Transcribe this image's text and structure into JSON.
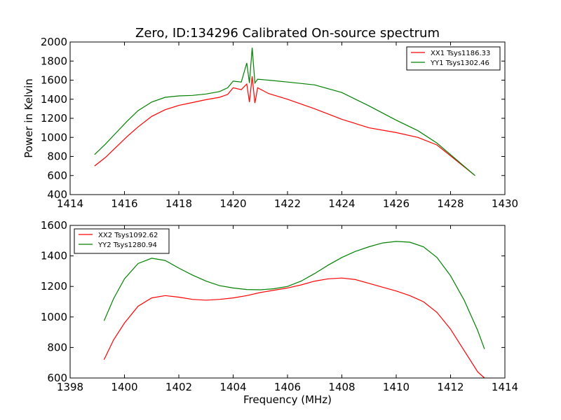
{
  "title": "Zero, ID:134296 Calibrated On-source spectrum",
  "ylabel": "Power in Kelvin",
  "xlabel": "Frequency (MHz)",
  "colors": {
    "series_a": "#ff0000",
    "series_b": "#008000"
  },
  "chart_data": [
    {
      "type": "line",
      "xlim": [
        1414,
        1430
      ],
      "ylim": [
        400,
        2000
      ],
      "xticks": [
        1414,
        1416,
        1418,
        1420,
        1422,
        1424,
        1426,
        1428,
        1430
      ],
      "yticks": [
        400,
        600,
        800,
        1000,
        1200,
        1400,
        1600,
        1800,
        2000
      ],
      "legend_position": "top-right",
      "series": [
        {
          "name": "XX1 Tsys1186.33",
          "color": "#ff0000",
          "points": [
            [
              1414.9,
              700
            ],
            [
              1415.3,
              790
            ],
            [
              1415.7,
              900
            ],
            [
              1416.1,
              1010
            ],
            [
              1416.5,
              1110
            ],
            [
              1417.0,
              1220
            ],
            [
              1417.5,
              1290
            ],
            [
              1418.0,
              1335
            ],
            [
              1418.5,
              1365
            ],
            [
              1419.0,
              1395
            ],
            [
              1419.5,
              1420
            ],
            [
              1419.8,
              1450
            ],
            [
              1420.0,
              1520
            ],
            [
              1420.3,
              1500
            ],
            [
              1420.5,
              1560
            ],
            [
              1420.6,
              1370
            ],
            [
              1420.7,
              1640
            ],
            [
              1420.8,
              1360
            ],
            [
              1420.9,
              1520
            ],
            [
              1421.3,
              1460
            ],
            [
              1422.0,
              1400
            ],
            [
              1423.0,
              1300
            ],
            [
              1424.0,
              1190
            ],
            [
              1425.0,
              1100
            ],
            [
              1426.0,
              1050
            ],
            [
              1426.8,
              1000
            ],
            [
              1427.5,
              920
            ],
            [
              1428.2,
              760
            ],
            [
              1428.9,
              600
            ]
          ]
        },
        {
          "name": "YY1 Tsys1302.46",
          "color": "#008000",
          "points": [
            [
              1414.9,
              820
            ],
            [
              1415.3,
              930
            ],
            [
              1415.7,
              1050
            ],
            [
              1416.1,
              1170
            ],
            [
              1416.5,
              1280
            ],
            [
              1417.0,
              1370
            ],
            [
              1417.5,
              1420
            ],
            [
              1418.0,
              1435
            ],
            [
              1418.5,
              1440
            ],
            [
              1419.0,
              1455
            ],
            [
              1419.5,
              1480
            ],
            [
              1419.8,
              1520
            ],
            [
              1420.0,
              1590
            ],
            [
              1420.3,
              1580
            ],
            [
              1420.5,
              1780
            ],
            [
              1420.6,
              1570
            ],
            [
              1420.7,
              1940
            ],
            [
              1420.8,
              1570
            ],
            [
              1420.9,
              1610
            ],
            [
              1421.3,
              1600
            ],
            [
              1422.0,
              1580
            ],
            [
              1423.0,
              1550
            ],
            [
              1424.0,
              1470
            ],
            [
              1425.0,
              1330
            ],
            [
              1426.0,
              1180
            ],
            [
              1426.8,
              1070
            ],
            [
              1427.5,
              940
            ],
            [
              1428.2,
              770
            ],
            [
              1428.9,
              600
            ]
          ]
        }
      ]
    },
    {
      "type": "line",
      "xlim": [
        1398,
        1414
      ],
      "ylim": [
        600,
        1600
      ],
      "xticks": [
        1398,
        1400,
        1402,
        1404,
        1406,
        1408,
        1410,
        1412,
        1414
      ],
      "yticks": [
        600,
        800,
        1000,
        1200,
        1400,
        1600
      ],
      "legend_position": "top-left",
      "series": [
        {
          "name": "XX2 Tsys1092.62",
          "color": "#ff0000",
          "points": [
            [
              1399.25,
              720
            ],
            [
              1399.6,
              850
            ],
            [
              1400.0,
              960
            ],
            [
              1400.5,
              1070
            ],
            [
              1401.0,
              1125
            ],
            [
              1401.5,
              1140
            ],
            [
              1402.0,
              1130
            ],
            [
              1402.5,
              1115
            ],
            [
              1403.0,
              1110
            ],
            [
              1403.5,
              1115
            ],
            [
              1404.0,
              1125
            ],
            [
              1404.5,
              1140
            ],
            [
              1405.0,
              1160
            ],
            [
              1405.5,
              1175
            ],
            [
              1406.0,
              1190
            ],
            [
              1406.5,
              1210
            ],
            [
              1407.0,
              1235
            ],
            [
              1407.5,
              1250
            ],
            [
              1408.0,
              1255
            ],
            [
              1408.5,
              1245
            ],
            [
              1409.0,
              1220
            ],
            [
              1409.5,
              1195
            ],
            [
              1410.0,
              1170
            ],
            [
              1410.5,
              1140
            ],
            [
              1411.0,
              1100
            ],
            [
              1411.5,
              1030
            ],
            [
              1412.0,
              920
            ],
            [
              1412.5,
              780
            ],
            [
              1413.0,
              640
            ],
            [
              1413.25,
              600
            ]
          ]
        },
        {
          "name": "YY2 Tsys1280.94",
          "color": "#008000",
          "points": [
            [
              1399.25,
              975
            ],
            [
              1399.6,
              1120
            ],
            [
              1400.0,
              1250
            ],
            [
              1400.5,
              1350
            ],
            [
              1401.0,
              1385
            ],
            [
              1401.5,
              1370
            ],
            [
              1402.0,
              1320
            ],
            [
              1402.5,
              1275
            ],
            [
              1403.0,
              1235
            ],
            [
              1403.5,
              1205
            ],
            [
              1404.0,
              1190
            ],
            [
              1404.5,
              1180
            ],
            [
              1405.0,
              1178
            ],
            [
              1405.5,
              1185
            ],
            [
              1406.0,
              1200
            ],
            [
              1406.5,
              1235
            ],
            [
              1407.0,
              1285
            ],
            [
              1407.5,
              1340
            ],
            [
              1408.0,
              1390
            ],
            [
              1408.5,
              1430
            ],
            [
              1409.0,
              1460
            ],
            [
              1409.5,
              1485
            ],
            [
              1410.0,
              1495
            ],
            [
              1410.5,
              1490
            ],
            [
              1411.0,
              1460
            ],
            [
              1411.5,
              1390
            ],
            [
              1412.0,
              1270
            ],
            [
              1412.5,
              1110
            ],
            [
              1413.0,
              910
            ],
            [
              1413.25,
              790
            ]
          ]
        }
      ]
    }
  ]
}
